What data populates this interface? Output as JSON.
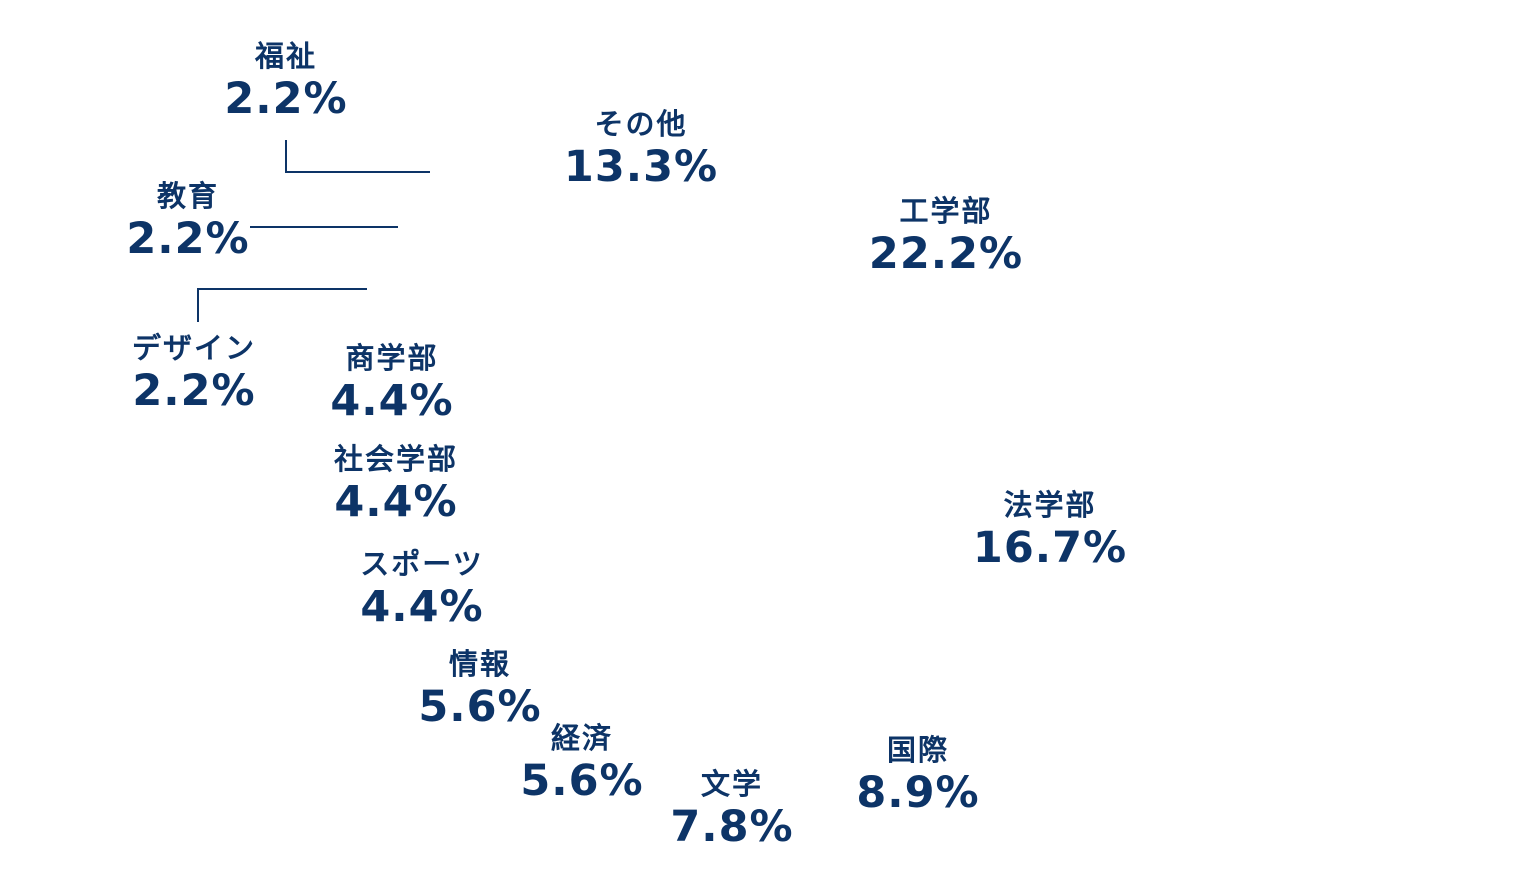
{
  "chart_data": {
    "type": "pie",
    "color": "#0d3467",
    "slices": [
      {
        "label": "工学部",
        "value": 22.2,
        "value_label": "22.2%"
      },
      {
        "label": "法学部",
        "value": 16.7,
        "value_label": "16.7%"
      },
      {
        "label": "国際",
        "value": 8.9,
        "value_label": "8.9%"
      },
      {
        "label": "文学",
        "value": 7.8,
        "value_label": "7.8%"
      },
      {
        "label": "経済",
        "value": 5.6,
        "value_label": "5.6%"
      },
      {
        "label": "情報",
        "value": 5.6,
        "value_label": "5.6%"
      },
      {
        "label": "スポーツ",
        "value": 4.4,
        "value_label": "4.4%"
      },
      {
        "label": "社会学部",
        "value": 4.4,
        "value_label": "4.4%"
      },
      {
        "label": "商学部",
        "value": 4.4,
        "value_label": "4.4%"
      },
      {
        "label": "デザイン",
        "value": 2.2,
        "value_label": "2.2%"
      },
      {
        "label": "教育",
        "value": 2.2,
        "value_label": "2.2%"
      },
      {
        "label": "福祉",
        "value": 2.2,
        "value_label": "2.2%"
      },
      {
        "label": "その他",
        "value": 13.3,
        "value_label": "13.3%"
      }
    ]
  }
}
